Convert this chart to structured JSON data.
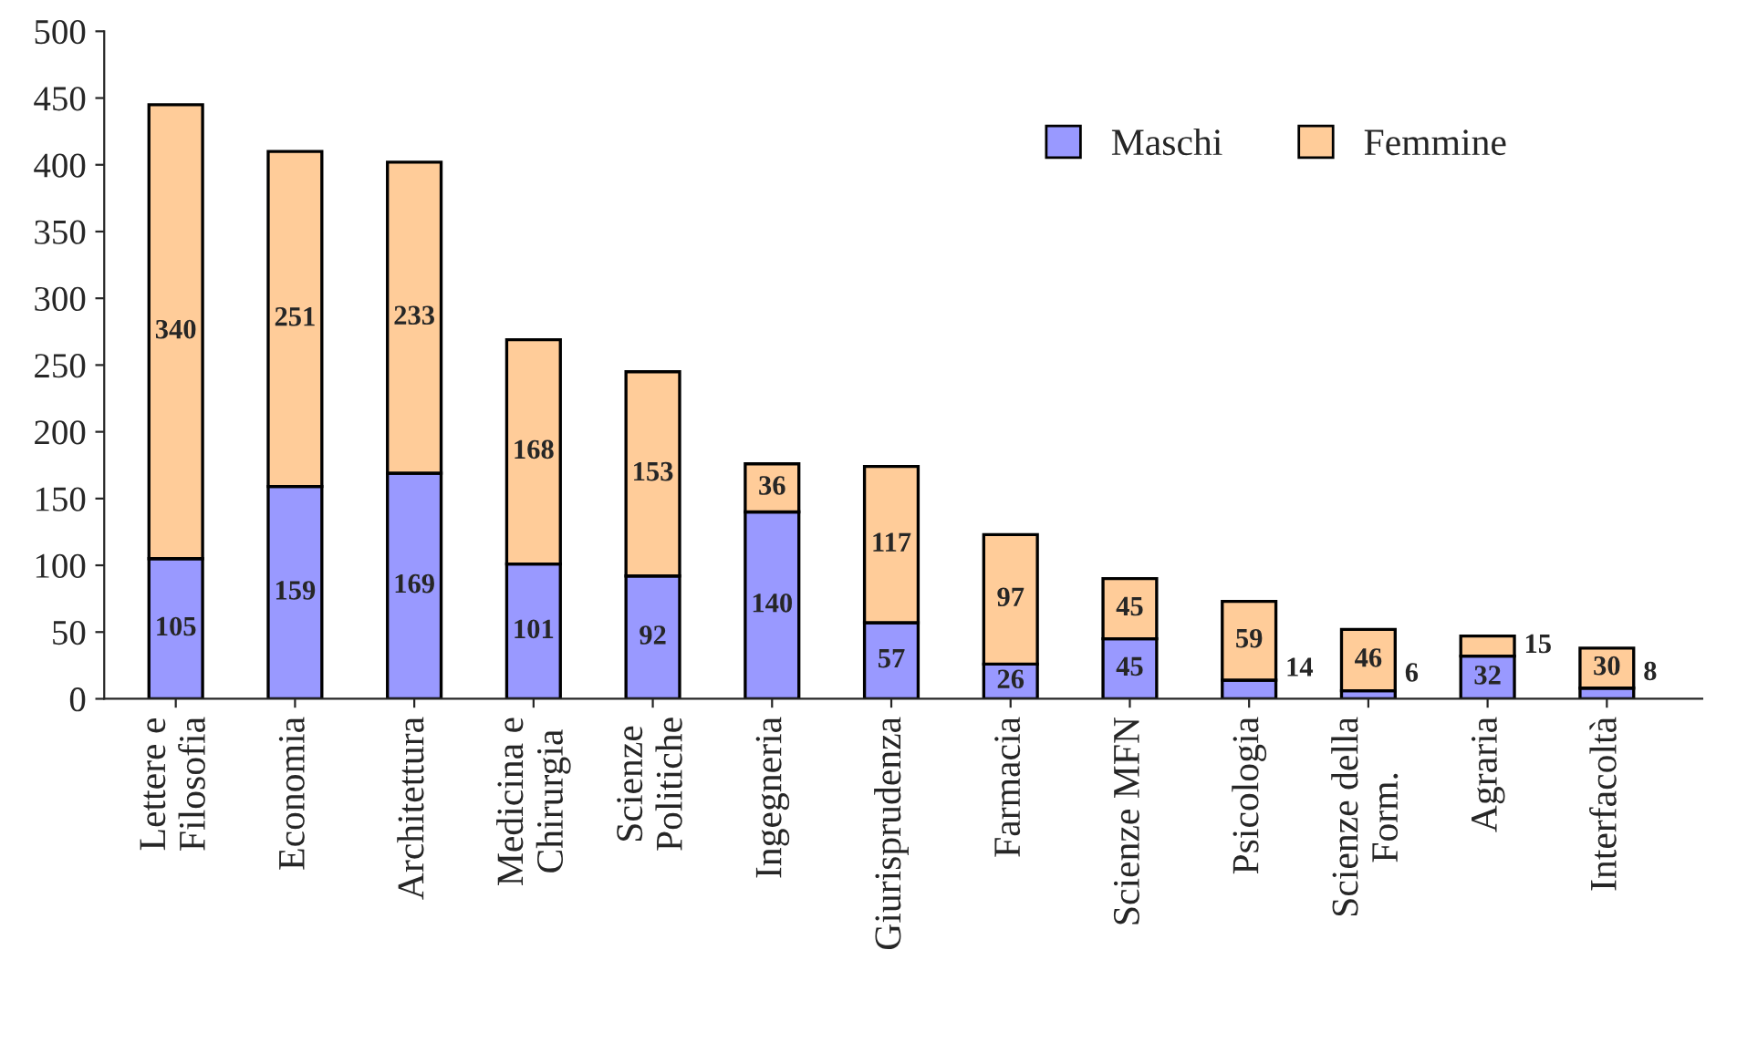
{
  "chart_data": {
    "type": "bar",
    "stacked": true,
    "categories": [
      "Lettere e\nFilosofia",
      "Economia",
      "Architettura",
      "Medicina e\nChirurgia",
      "Scienze\nPolitiche",
      "Ingegneria",
      "Giurisprudenza",
      "Farmacia",
      "Scienze MFN",
      "Psicologia",
      "Scienze della\nForm.",
      "Agraria",
      "Interfacoltà"
    ],
    "series": [
      {
        "name": "Maschi",
        "color": "#9999ff",
        "values": [
          105,
          159,
          169,
          101,
          92,
          140,
          57,
          26,
          45,
          14,
          6,
          32,
          8
        ]
      },
      {
        "name": "Femmine",
        "color": "#ffcc99",
        "values": [
          340,
          251,
          233,
          168,
          153,
          36,
          117,
          97,
          45,
          59,
          46,
          15,
          30
        ]
      }
    ],
    "ylim": [
      0,
      500
    ],
    "yticks": [
      0,
      50,
      100,
      150,
      200,
      250,
      300,
      350,
      400,
      450,
      500
    ],
    "data_labels": true,
    "legend": "top right",
    "grid": false
  }
}
